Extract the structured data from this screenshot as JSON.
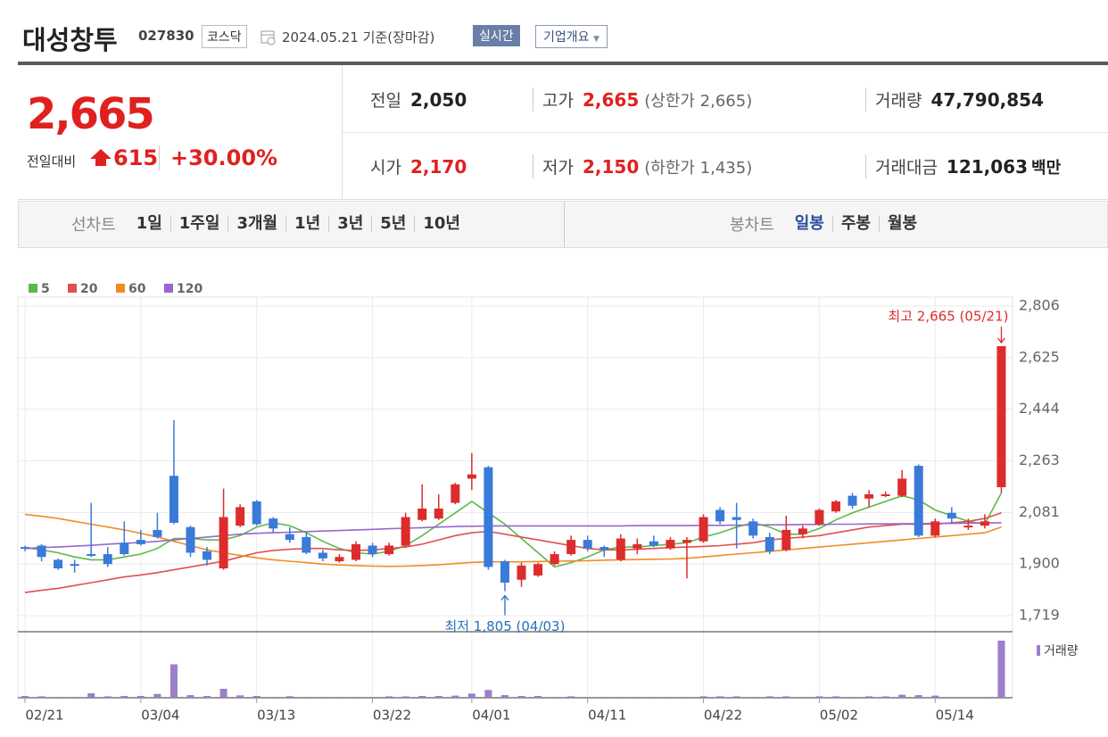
{
  "header": {
    "name": "대성창투",
    "code": "027830",
    "market": "코스닥",
    "date_basis": "2024.05.21 기준(장마감)",
    "realtime": "실시간",
    "company": "기업개요"
  },
  "quote": {
    "price": "2,665",
    "change_label": "전일대비",
    "change": "615",
    "change_pct": "+30.00%"
  },
  "summary": [
    {
      "label": "전일",
      "value": "2,050"
    },
    {
      "label": "고가",
      "value": "2,665",
      "extra": "(상한가 2,665)"
    },
    {
      "label": "거래량",
      "value": "47,790,854"
    },
    {
      "label": "시가",
      "value": "2,170"
    },
    {
      "label": "저가",
      "value": "2,150",
      "extra": "(하한가 1,435)"
    },
    {
      "label": "거래대금",
      "value": "121,063",
      "unit": "백만"
    }
  ],
  "selector": {
    "line_label": "선차트",
    "line_periods": [
      "1일",
      "1주일",
      "3개월",
      "1년",
      "3년",
      "5년",
      "10년"
    ],
    "candle_label": "봉차트",
    "candle_periods": [
      "일봉",
      "주봉",
      "월봉"
    ]
  },
  "chart_data": {
    "type": "candlestick",
    "categories": [
      "02/21",
      null,
      null,
      null,
      null,
      null,
      null,
      "03/04",
      null,
      null,
      null,
      null,
      null,
      null,
      "03/13",
      null,
      null,
      null,
      null,
      null,
      null,
      "03/22",
      null,
      null,
      null,
      null,
      null,
      "04/01",
      null,
      null,
      null,
      null,
      null,
      null,
      "04/11",
      null,
      null,
      null,
      null,
      null,
      null,
      "04/22",
      null,
      null,
      null,
      null,
      null,
      null,
      "05/02",
      null,
      null,
      null,
      null,
      null,
      null,
      "05/14",
      null,
      null,
      null,
      null
    ],
    "open": [
      1960,
      1965,
      1915,
      1900,
      1935,
      1935,
      1975,
      1985,
      2020,
      2210,
      2030,
      1945,
      1885,
      2035,
      2120,
      2060,
      2005,
      1995,
      1940,
      1910,
      1915,
      1965,
      1935,
      1965,
      2055,
      2060,
      2115,
      2200,
      2240,
      1910,
      1845,
      1860,
      1900,
      1935,
      1985,
      1960,
      1915,
      1955,
      1980,
      1955,
      1975,
      1980,
      2090,
      2065,
      2050,
      1995,
      1950,
      2005,
      2040,
      2085,
      2140,
      2130,
      2140,
      2140,
      2245,
      2000,
      2080,
      2030,
      2035,
      2170
    ],
    "high": [
      1965,
      1970,
      1920,
      1915,
      2115,
      1960,
      2050,
      2020,
      2080,
      2405,
      2035,
      1960,
      2165,
      2110,
      2125,
      2065,
      2030,
      2010,
      1950,
      1935,
      1980,
      1975,
      1975,
      2080,
      2180,
      2145,
      2185,
      2290,
      2245,
      1915,
      1905,
      1905,
      1945,
      2000,
      2000,
      1965,
      2005,
      1990,
      2000,
      1995,
      1995,
      2075,
      2100,
      2115,
      2060,
      2010,
      2070,
      2035,
      2095,
      2125,
      2150,
      2160,
      2155,
      2230,
      2250,
      2060,
      2100,
      2060,
      2075,
      2665
    ],
    "low": [
      1945,
      1910,
      1880,
      1870,
      1925,
      1890,
      1930,
      1965,
      1990,
      2040,
      1925,
      1895,
      1880,
      2030,
      2035,
      2010,
      1975,
      1935,
      1910,
      1905,
      1910,
      1925,
      1930,
      1960,
      2050,
      2055,
      2110,
      2160,
      1880,
      1805,
      1820,
      1855,
      1895,
      1930,
      1945,
      1925,
      1910,
      1935,
      1960,
      1950,
      1850,
      1975,
      2040,
      1955,
      1990,
      1935,
      1945,
      1990,
      2035,
      2080,
      2095,
      2100,
      2135,
      2135,
      1995,
      1995,
      2045,
      2020,
      2025,
      2150
    ],
    "close": [
      1955,
      1925,
      1885,
      1895,
      1930,
      1900,
      1935,
      1970,
      1995,
      2045,
      1940,
      1915,
      2065,
      2100,
      2040,
      2025,
      1985,
      1940,
      1920,
      1925,
      1970,
      1935,
      1965,
      2065,
      2095,
      2095,
      2180,
      2215,
      1890,
      1835,
      1895,
      1900,
      1935,
      1985,
      1955,
      1950,
      1990,
      1970,
      1965,
      1985,
      1985,
      2065,
      2050,
      2055,
      2000,
      1945,
      2020,
      2025,
      2090,
      2120,
      2105,
      2145,
      2145,
      2200,
      2000,
      2050,
      2060,
      2035,
      2050,
      2665
    ],
    "up_color": "#dd2c2c",
    "down_color": "#3a7ad9",
    "series": [
      {
        "name": "5",
        "color": "#5cb84a",
        "values": [
          1958,
          1950,
          1940,
          1925,
          1915,
          1915,
          1925,
          1935,
          1955,
          1990,
          1990,
          1985,
          1985,
          2000,
          2030,
          2045,
          2035,
          2010,
          1980,
          1955,
          1940,
          1935,
          1945,
          1965,
          2000,
          2040,
          2080,
          2120,
          2080,
          2040,
          1990,
          1940,
          1890,
          1905,
          1925,
          1950,
          1960,
          1960,
          1965,
          1970,
          1975,
          1995,
          2010,
          2030,
          2045,
          2030,
          2005,
          2005,
          2025,
          2055,
          2080,
          2100,
          2120,
          2140,
          2125,
          2090,
          2070,
          2050,
          2040,
          2150
        ]
      },
      {
        "name": "20",
        "color": "#e05050",
        "values": [
          1800,
          1808,
          1815,
          1825,
          1835,
          1845,
          1855,
          1862,
          1870,
          1880,
          1890,
          1900,
          1910,
          1925,
          1940,
          1948,
          1952,
          1955,
          1955,
          1950,
          1948,
          1950,
          1955,
          1960,
          1970,
          1985,
          2000,
          2010,
          2015,
          2005,
          1995,
          1985,
          1975,
          1965,
          1955,
          1950,
          1950,
          1952,
          1955,
          1958,
          1960,
          1962,
          1965,
          1970,
          1975,
          1985,
          1990,
          1995,
          2000,
          2010,
          2020,
          2030,
          2035,
          2040,
          2040,
          2040,
          2045,
          2050,
          2060,
          2080
        ]
      },
      {
        "name": "60",
        "color": "#f08c28",
        "values": [
          2075,
          2068,
          2060,
          2050,
          2040,
          2030,
          2020,
          2008,
          1995,
          1980,
          1965,
          1950,
          1940,
          1930,
          1922,
          1915,
          1910,
          1905,
          1900,
          1897,
          1895,
          1893,
          1892,
          1893,
          1895,
          1898,
          1902,
          1906,
          1908,
          1908,
          1908,
          1909,
          1910,
          1911,
          1912,
          1914,
          1915,
          1916,
          1917,
          1918,
          1920,
          1925,
          1930,
          1935,
          1940,
          1945,
          1950,
          1955,
          1960,
          1965,
          1970,
          1975,
          1980,
          1985,
          1990,
          1995,
          2000,
          2005,
          2010,
          2030
        ]
      },
      {
        "name": "120",
        "color": "#9966cc",
        "values": [
          1955,
          1958,
          1960,
          1963,
          1966,
          1970,
          1973,
          1976,
          1980,
          1985,
          1990,
          1995,
          2000,
          2005,
          2008,
          2010,
          2012,
          2014,
          2016,
          2018,
          2020,
          2022,
          2024,
          2026,
          2028,
          2030,
          2032,
          2033,
          2034,
          2034,
          2034,
          2034,
          2034,
          2034,
          2034,
          2034,
          2034,
          2035,
          2035,
          2035,
          2035,
          2036,
          2036,
          2037,
          2037,
          2038,
          2038,
          2039,
          2039,
          2040,
          2040,
          2041,
          2041,
          2042,
          2042,
          2043,
          2043,
          2044,
          2045,
          2045
        ]
      }
    ],
    "volume": {
      "name": "거래량",
      "color": "#9b7fc9",
      "ylim": [
        0,
        47790854
      ],
      "values": [
        1500000,
        1200000,
        400000,
        300000,
        3800000,
        1200000,
        1500000,
        1500000,
        3200000,
        28000000,
        2200000,
        1500000,
        7500000,
        2000000,
        1500000,
        300000,
        1300000,
        300000,
        300000,
        300000,
        300000,
        300000,
        1200000,
        1200000,
        1500000,
        1500000,
        1800000,
        3500000,
        6500000,
        2200000,
        1500000,
        1500000,
        300000,
        1200000,
        300000,
        300000,
        300000,
        300000,
        300000,
        300000,
        300000,
        1200000,
        1200000,
        1200000,
        300000,
        1200000,
        1200000,
        300000,
        1200000,
        1200000,
        300000,
        1200000,
        1200000,
        2500000,
        2200000,
        1800000,
        300000,
        300000,
        300000,
        47790854
      ]
    },
    "ylim": [
      1719,
      2806
    ],
    "yticks": [
      {
        "value": 2806,
        "label": "2,806"
      },
      {
        "value": 2625,
        "label": "2,625"
      },
      {
        "value": 2444,
        "label": "2,444"
      },
      {
        "value": 2263,
        "label": "2,263"
      },
      {
        "value": 2081,
        "label": "2,081"
      },
      {
        "value": 1900,
        "label": "1,900"
      },
      {
        "value": 1719,
        "label": "1,719"
      }
    ],
    "grid": true,
    "max_annotation": "최고 2,665 (05/21)",
    "min_annotation": "최저 1,805 (04/03)"
  }
}
